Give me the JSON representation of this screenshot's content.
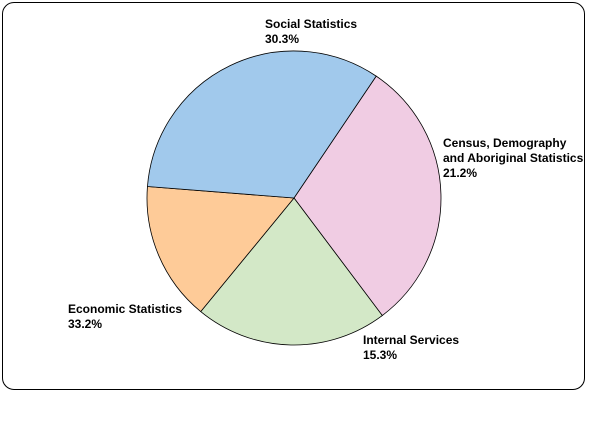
{
  "chart_data": {
    "type": "pie",
    "title": "",
    "slices": [
      {
        "label_lines": [
          "Social Statistics"
        ],
        "value_text": "30.3%",
        "value": 30.3,
        "color": "#f0cce3"
      },
      {
        "label_lines": [
          "Census, Demography",
          "and Aboriginal Statistics"
        ],
        "value_text": "21.2%",
        "value": 21.2,
        "color": "#d3e8c7"
      },
      {
        "label_lines": [
          "Internal Services"
        ],
        "value_text": "15.3%",
        "value": 15.3,
        "color": "#fecb98"
      },
      {
        "label_lines": [
          "Economic Statistics"
        ],
        "value_text": "33.2%",
        "value": 33.2,
        "color": "#a1c9ec"
      }
    ],
    "start_angle_deg": -56,
    "direction": "clockwise",
    "legend": "none",
    "border_color": "#000000"
  }
}
